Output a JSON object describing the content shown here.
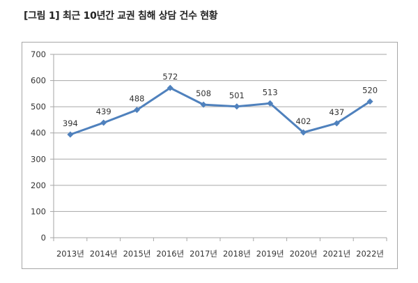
{
  "title": "[그림 1] 최근 10년간 교권 침해 상담 건수 현황",
  "colors": {
    "line": "#4f81bd",
    "grid": "#a6a6a6",
    "frame": "#a6a6a6"
  },
  "chart_data": {
    "type": "line",
    "title": "[그림 1] 최근 10년간 교권 침해 상담 건수 현황",
    "xlabel": "",
    "ylabel": "",
    "categories": [
      "2013년",
      "2014년",
      "2015년",
      "2016년",
      "2017년",
      "2018년",
      "2019년",
      "2020년",
      "2021년",
      "2022년"
    ],
    "series": [
      {
        "name": "교권 침해 상담 건수",
        "values": [
          394,
          439,
          488,
          572,
          508,
          501,
          513,
          402,
          437,
          520
        ]
      }
    ],
    "ylim": [
      0,
      700
    ],
    "yticks": [
      0,
      100,
      200,
      300,
      400,
      500,
      600,
      700
    ],
    "grid": true,
    "legend": "none",
    "data_labels": true
  }
}
